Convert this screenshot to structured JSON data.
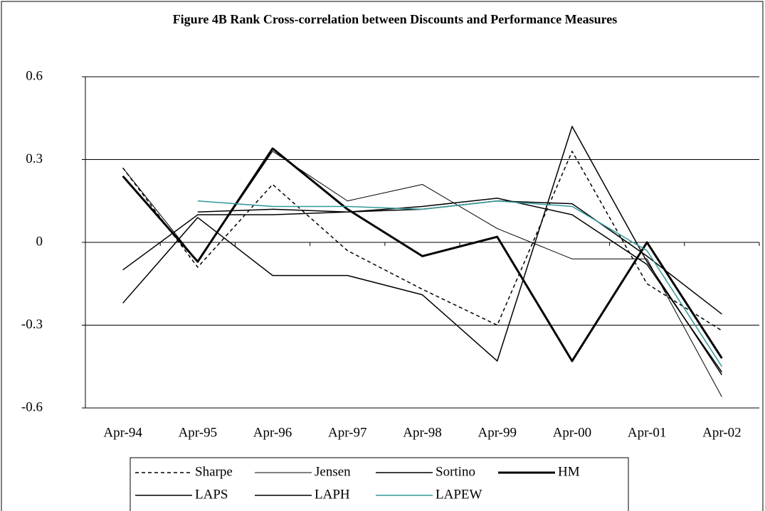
{
  "chart_data": {
    "type": "line",
    "title": "Figure 4B Rank Cross-correlation between Discounts and Performance Measures",
    "categories": [
      "Apr-94",
      "Apr-95",
      "Apr-96",
      "Apr-97",
      "Apr-98",
      "Apr-99",
      "Apr-00",
      "Apr-01",
      "Apr-02"
    ],
    "ylim": [
      -0.6,
      0.6
    ],
    "yticks": [
      -0.6,
      -0.3,
      0,
      0.3,
      0.6
    ],
    "grid": true,
    "legend": "bottom",
    "series": [
      {
        "name": "Sharpe",
        "color": "#000000",
        "width": 1.5,
        "dash": "5,4",
        "values": [
          0.27,
          -0.09,
          0.21,
          -0.03,
          -0.17,
          -0.3,
          0.33,
          -0.15,
          -0.32
        ]
      },
      {
        "name": "Jensen",
        "color": "#000000",
        "width": 1,
        "values": [
          0.27,
          -0.07,
          0.33,
          0.15,
          0.21,
          0.05,
          -0.06,
          -0.06,
          -0.56
        ]
      },
      {
        "name": "Sortino",
        "color": "#000000",
        "width": 1.5,
        "values": [
          -0.1,
          0.1,
          0.1,
          0.11,
          0.13,
          0.16,
          0.1,
          -0.08,
          -0.47
        ]
      },
      {
        "name": "HM",
        "color": "#000000",
        "width": 3,
        "values": [
          0.24,
          -0.07,
          0.34,
          0.12,
          -0.05,
          0.02,
          -0.43,
          0.0,
          -0.42
        ]
      },
      {
        "name": "LAPS",
        "color": "#000000",
        "width": 1.5,
        "values": [
          -0.22,
          0.09,
          -0.12,
          -0.12,
          -0.19,
          -0.43,
          0.42,
          -0.07,
          -0.48
        ]
      },
      {
        "name": "LAPH",
        "color": "#000000",
        "width": 1.5,
        "values": [
          null,
          0.11,
          0.12,
          0.11,
          0.12,
          0.15,
          0.14,
          -0.05,
          -0.26
        ]
      },
      {
        "name": "LAPEW",
        "color": "#339999",
        "width": 1.5,
        "values": [
          null,
          0.15,
          0.13,
          0.13,
          0.12,
          0.15,
          0.13,
          -0.03,
          -0.45
        ]
      }
    ]
  }
}
